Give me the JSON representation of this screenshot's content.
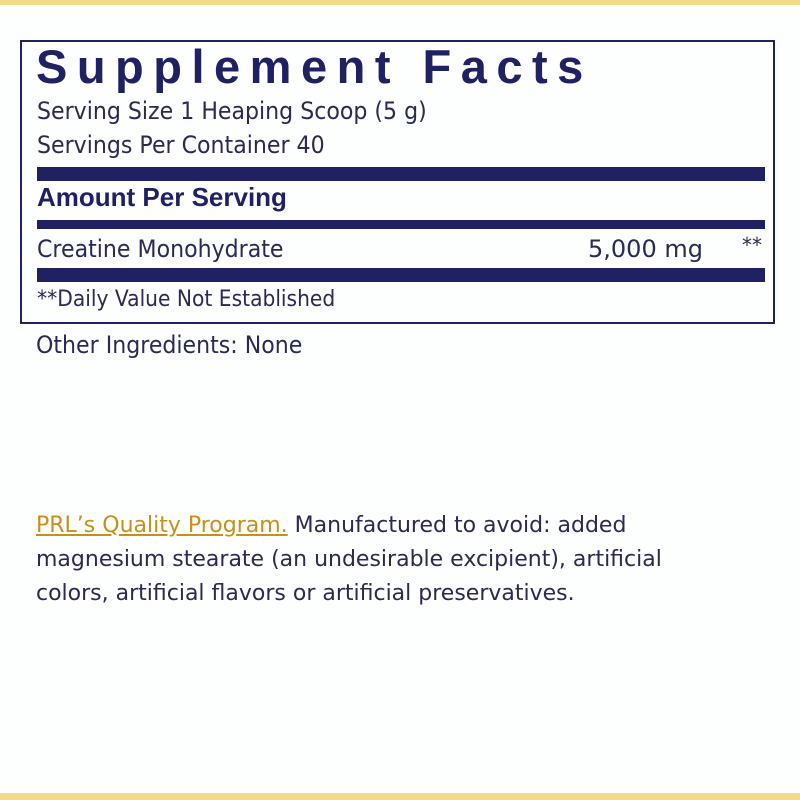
{
  "label": {
    "title": "Supplement Facts",
    "serving_size": "Serving Size 1 Heaping Scoop (5 g)",
    "servings_per_container": "Servings Per Container 40",
    "amount_header": "Amount Per Serving",
    "ingredients": [
      {
        "name": "Creatine Monohydrate",
        "amount": "5,000 mg",
        "daily_value": "**"
      }
    ],
    "footnote": "**Daily Value Not Established"
  },
  "other_ingredients": "Other Ingredients: None",
  "quality": {
    "link": "PRL’s Quality Program.",
    "text": " Manufactured to avoid: added magnesium stearate (an undesirable excipient), artificial colors, artificial flavors or artificial preservatives."
  },
  "colors": {
    "navy": "#1f2163",
    "gold": "#c8901a",
    "border": "#f3d98a"
  }
}
